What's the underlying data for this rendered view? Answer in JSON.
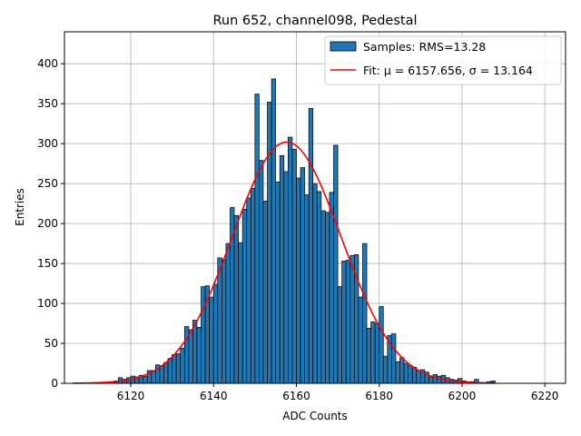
{
  "chart_data": {
    "type": "bar",
    "title": "Run 652, channel098, Pedestal",
    "xlabel": "ADC Counts",
    "ylabel": "Entries",
    "xlim": [
      6104,
      6225
    ],
    "ylim": [
      0,
      440
    ],
    "xticks": [
      6120,
      6140,
      6160,
      6180,
      6200,
      6220
    ],
    "yticks": [
      0,
      50,
      100,
      150,
      200,
      250,
      300,
      350,
      400
    ],
    "grid": true,
    "legend_position": "top-right",
    "bar_color": "#1f77b4",
    "fit_color": "#ff0000",
    "histogram": {
      "name": "Samples: RMS=13.28",
      "bin_width": 1,
      "bins": [
        [
          6113,
          1
        ],
        [
          6114,
          1
        ],
        [
          6115,
          2
        ],
        [
          6116,
          3
        ],
        [
          6117,
          7
        ],
        [
          6118,
          5
        ],
        [
          6119,
          7
        ],
        [
          6120,
          9
        ],
        [
          6121,
          8
        ],
        [
          6122,
          10
        ],
        [
          6123,
          9
        ],
        [
          6124,
          16
        ],
        [
          6125,
          16
        ],
        [
          6126,
          23
        ],
        [
          6127,
          22
        ],
        [
          6128,
          26
        ],
        [
          6129,
          31
        ],
        [
          6130,
          36
        ],
        [
          6131,
          37
        ],
        [
          6132,
          44
        ],
        [
          6133,
          71
        ],
        [
          6134,
          67
        ],
        [
          6135,
          79
        ],
        [
          6136,
          70
        ],
        [
          6137,
          121
        ],
        [
          6138,
          122
        ],
        [
          6139,
          108
        ],
        [
          6140,
          124
        ],
        [
          6141,
          157
        ],
        [
          6142,
          155
        ],
        [
          6143,
          175
        ],
        [
          6144,
          220
        ],
        [
          6145,
          210
        ],
        [
          6146,
          176
        ],
        [
          6147,
          218
        ],
        [
          6148,
          232
        ],
        [
          6149,
          244
        ],
        [
          6150,
          362
        ],
        [
          6151,
          279
        ],
        [
          6152,
          228
        ],
        [
          6153,
          352
        ],
        [
          6154,
          381
        ],
        [
          6155,
          252
        ],
        [
          6156,
          285
        ],
        [
          6157,
          265
        ],
        [
          6158,
          308
        ],
        [
          6159,
          293
        ],
        [
          6160,
          257
        ],
        [
          6161,
          270
        ],
        [
          6162,
          236
        ],
        [
          6163,
          344
        ],
        [
          6164,
          250
        ],
        [
          6165,
          240
        ],
        [
          6166,
          216
        ],
        [
          6167,
          214
        ],
        [
          6168,
          239
        ],
        [
          6169,
          298
        ],
        [
          6170,
          121
        ],
        [
          6171,
          153
        ],
        [
          6172,
          154
        ],
        [
          6173,
          160
        ],
        [
          6174,
          161
        ],
        [
          6175,
          108
        ],
        [
          6176,
          175
        ],
        [
          6177,
          69
        ],
        [
          6178,
          77
        ],
        [
          6179,
          75
        ],
        [
          6180,
          96
        ],
        [
          6181,
          34
        ],
        [
          6182,
          60
        ],
        [
          6183,
          62
        ],
        [
          6184,
          27
        ],
        [
          6185,
          32
        ],
        [
          6186,
          25
        ],
        [
          6187,
          22
        ],
        [
          6188,
          20
        ],
        [
          6189,
          16
        ],
        [
          6190,
          17
        ],
        [
          6191,
          14
        ],
        [
          6192,
          8
        ],
        [
          6193,
          11
        ],
        [
          6194,
          9
        ],
        [
          6195,
          10
        ],
        [
          6196,
          7
        ],
        [
          6197,
          5
        ],
        [
          6198,
          4
        ],
        [
          6199,
          6
        ],
        [
          6200,
          3
        ],
        [
          6201,
          2
        ],
        [
          6202,
          2
        ],
        [
          6203,
          5
        ],
        [
          6204,
          1
        ],
        [
          6205,
          1
        ],
        [
          6206,
          2
        ],
        [
          6207,
          3
        ]
      ]
    },
    "fit": {
      "name": "Fit: μ = 6157.656, σ = 13.164",
      "mu": 6157.656,
      "sigma": 13.164,
      "amplitude": 302,
      "x_range": [
        6106,
        6208
      ]
    }
  }
}
